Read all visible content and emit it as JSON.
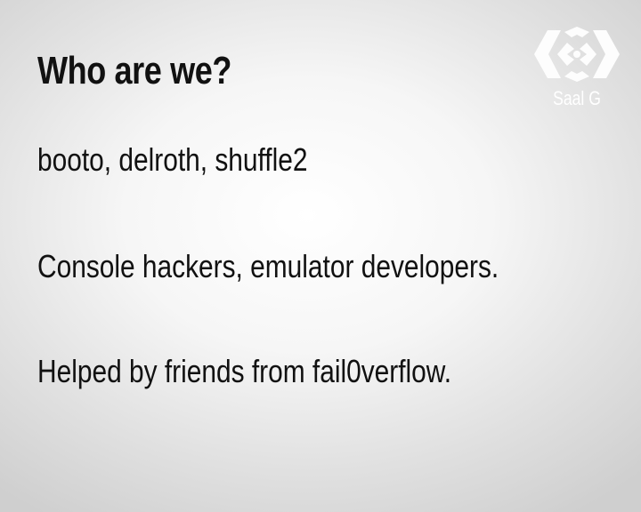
{
  "slide": {
    "title": "Who are we?",
    "lines": [
      "booto, delroth, shuffle2",
      "Console hackers, emulator developers.",
      "Helped by friends from fail0verflow."
    ]
  },
  "logo": {
    "text": "Saal G",
    "icon": "saal-g-logo-icon",
    "color": "#ffffff"
  },
  "colors": {
    "text": "#111111",
    "background": "#f4f4f4"
  }
}
